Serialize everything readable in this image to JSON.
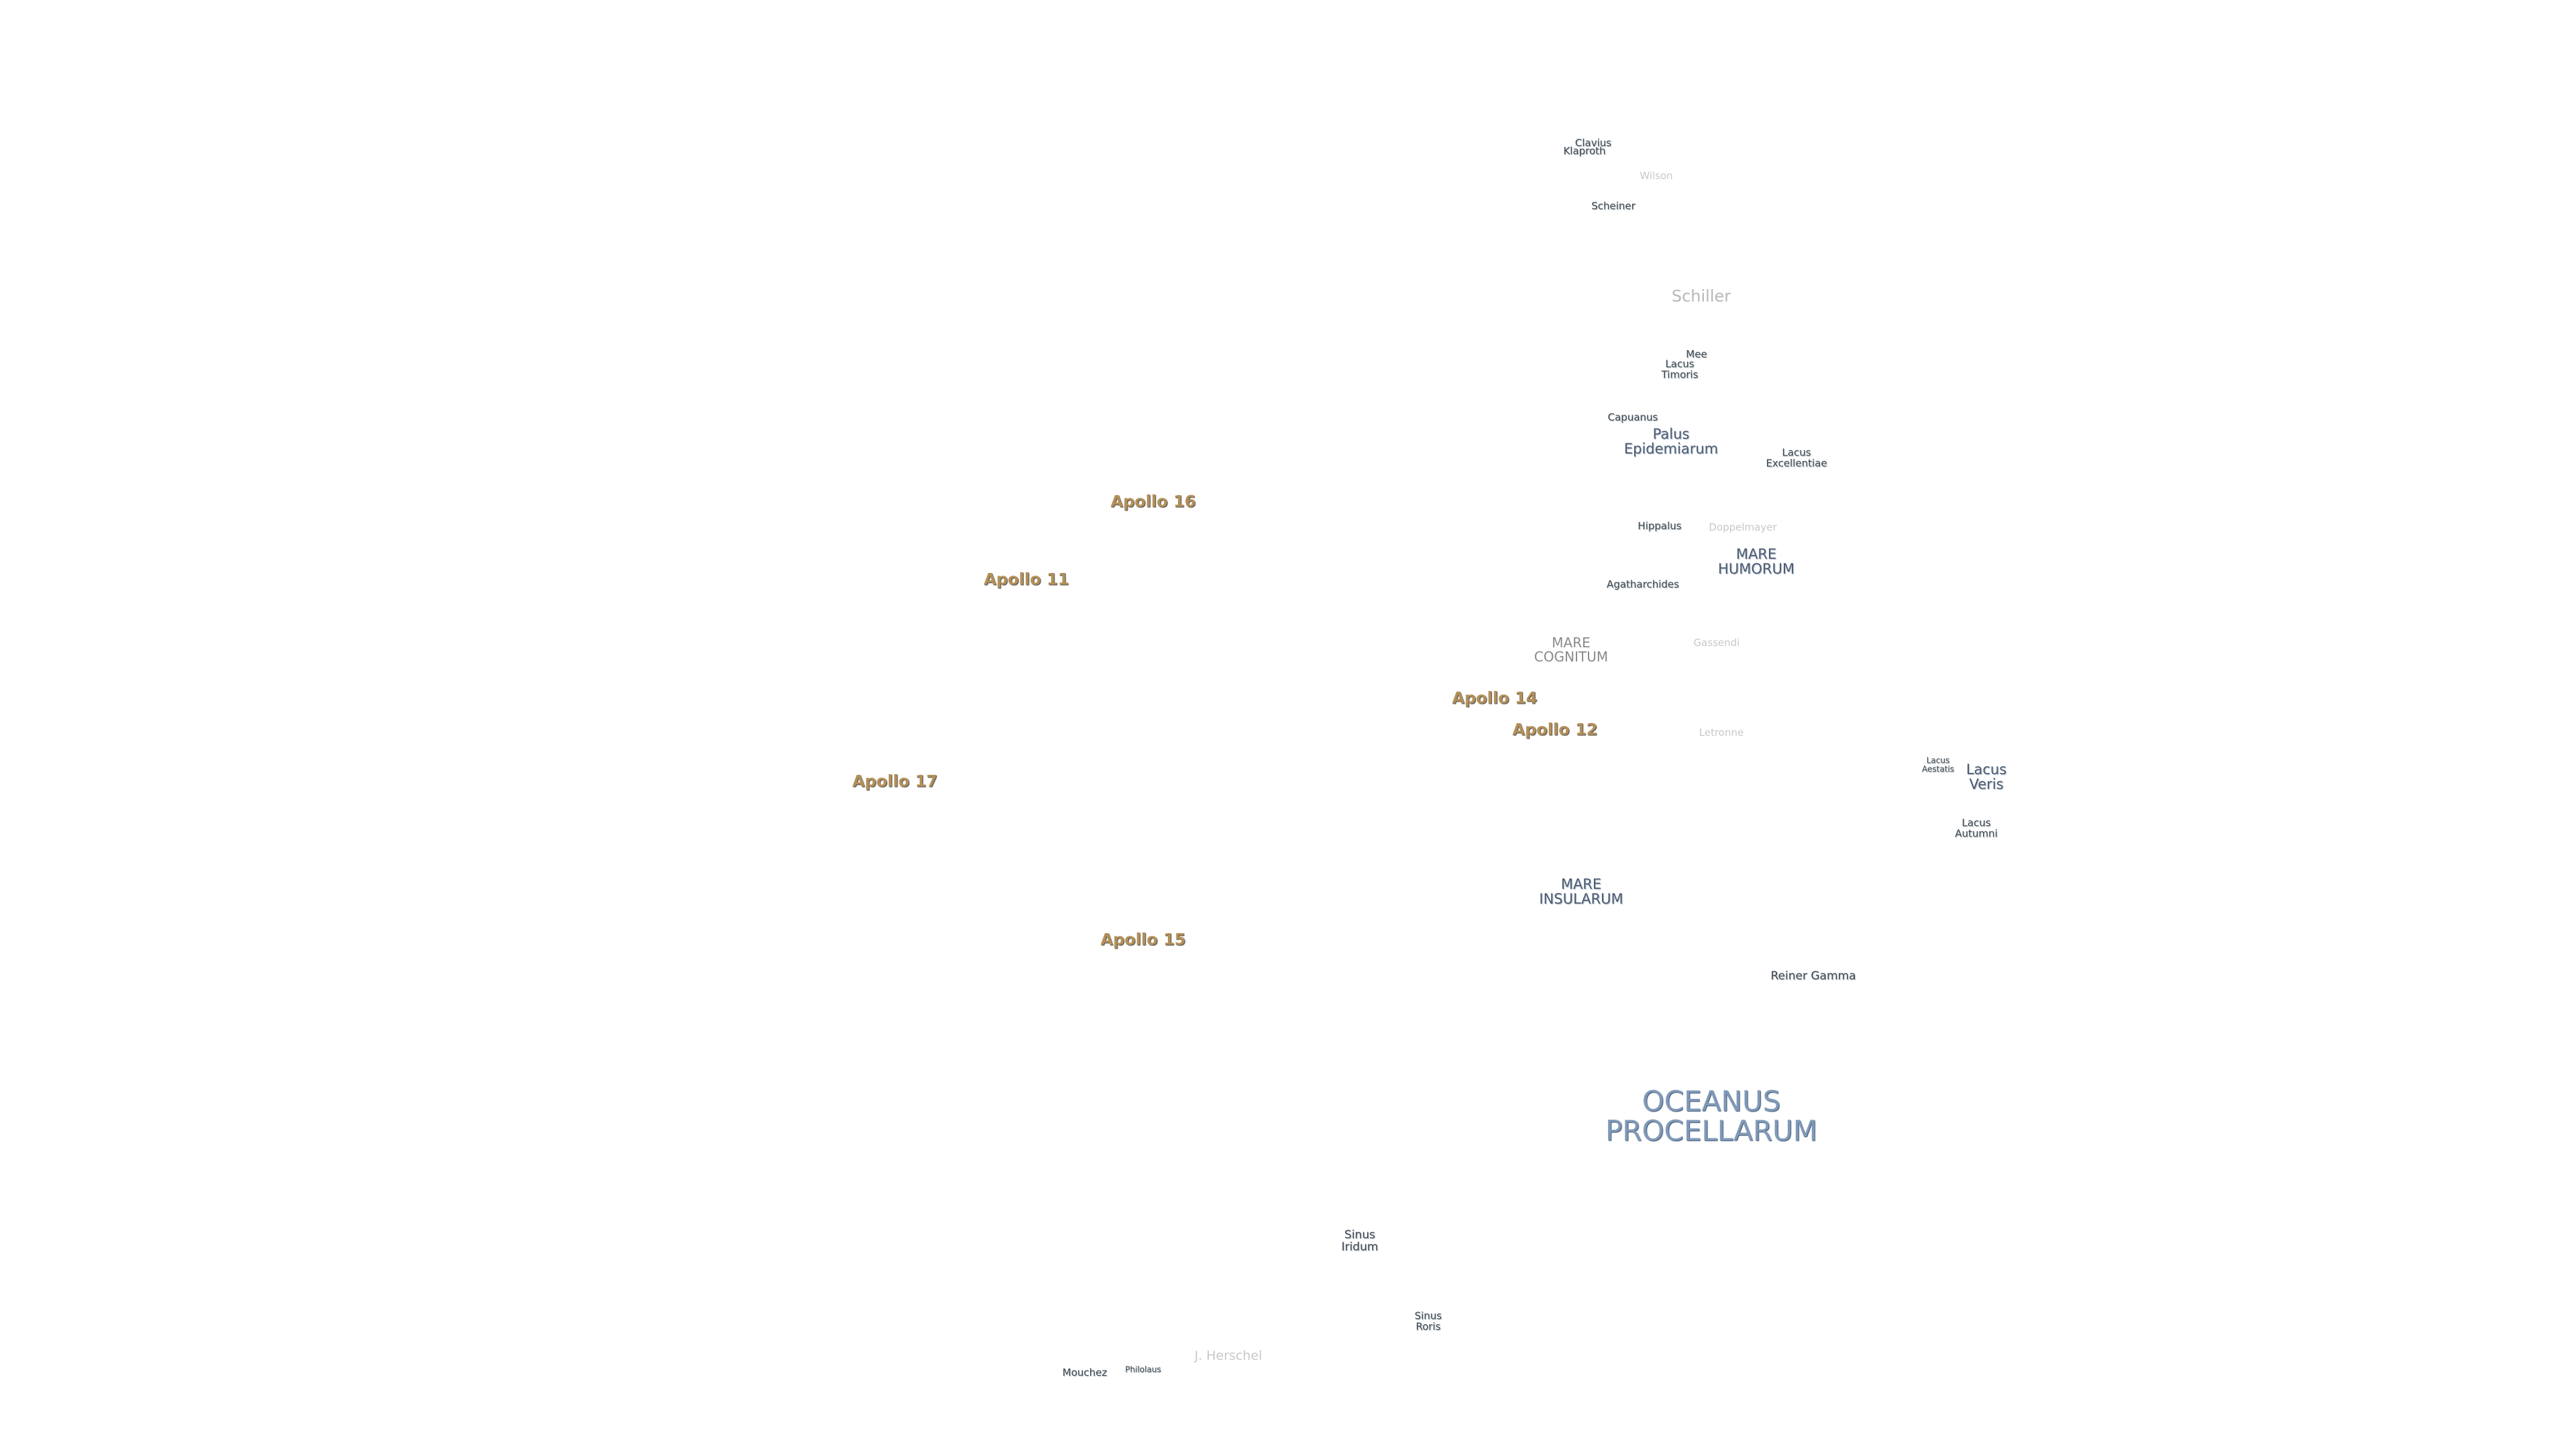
{
  "labels": [
    "Clavius",
    "Klaproth",
    "Wilson",
    "Scheiner",
    "Schiller",
    "Mee",
    "Lacus\nTimoris",
    "Capuanus",
    "Palus\nEpidemiarum",
    "Lacus\nExcellentiae",
    "Apollo 16",
    "Hippalus",
    "Doppelmayer",
    "MARE\nHUMORUM",
    "Apollo 11",
    "Agatharchides",
    "MARE\nCOGNITUM",
    "Gassendi",
    "Apollo 14",
    "Apollo 12",
    "Letronne",
    "Lacus\nAestatis",
    "Lacus\nVeris",
    "Apollo 17",
    "Lacus\nAutumni",
    "MARE\nINSULARUM",
    "Apollo 15",
    "Reiner Gamma",
    "OCEANUS\nPROCELLARUM",
    "Sinus\nIridum",
    "Sinus\nRoris",
    "J. Herschel",
    "Mouchez",
    "Philolaus"
  ]
}
